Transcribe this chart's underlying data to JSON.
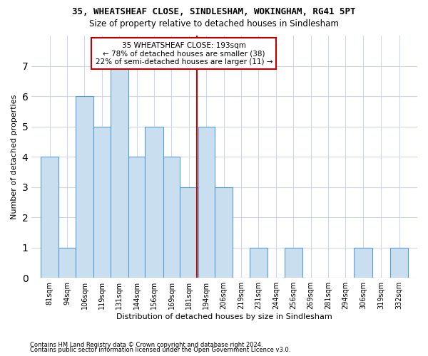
{
  "title1": "35, WHEATSHEAF CLOSE, SINDLESHAM, WOKINGHAM, RG41 5PT",
  "title2": "Size of property relative to detached houses in Sindlesham",
  "xlabel": "Distribution of detached houses by size in Sindlesham",
  "ylabel": "Number of detached properties",
  "footnote1": "Contains HM Land Registry data © Crown copyright and database right 2024.",
  "footnote2": "Contains public sector information licensed under the Open Government Licence v3.0.",
  "annotation_line1": "35 WHEATSHEAF CLOSE: 193sqm",
  "annotation_line2": "← 78% of detached houses are smaller (38)",
  "annotation_line3": "22% of semi-detached houses are larger (11) →",
  "property_size": 193,
  "bar_edges": [
    81,
    94,
    106,
    119,
    131,
    144,
    156,
    169,
    181,
    194,
    206,
    219,
    231,
    244,
    256,
    269,
    281,
    294,
    306,
    319,
    332,
    345
  ],
  "bar_heights": [
    4,
    1,
    6,
    5,
    7,
    4,
    5,
    4,
    3,
    5,
    3,
    0,
    1,
    0,
    1,
    0,
    0,
    0,
    1,
    0,
    1
  ],
  "bar_color": "#c9dff0",
  "bar_edge_color": "#5b9bd5",
  "ref_line_color": "#c00000",
  "ref_box_color": "#c00000",
  "grid_color": "#d0d8e8",
  "bg_color": "#ffffff",
  "ylim_max": 8,
  "yticks": [
    0,
    1,
    2,
    3,
    4,
    5,
    6,
    7,
    8
  ]
}
